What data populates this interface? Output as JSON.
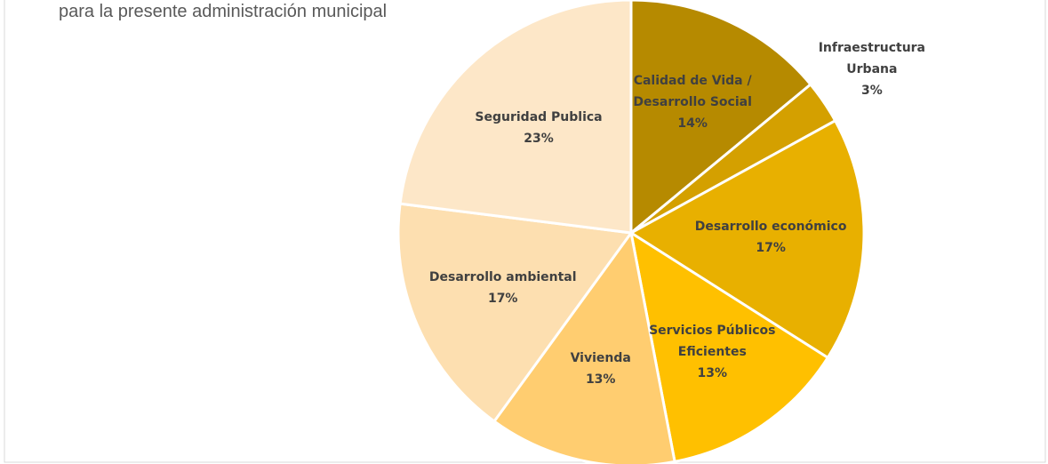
{
  "chart_data": {
    "type": "pie",
    "title": "para la presente administración municipal",
    "categories": [
      "Calidad de Vida / Desarrollo Social",
      "Infraestructura Urbana",
      "Desarrollo económico",
      "Servicios Públicos Eficientes",
      "Vivienda",
      "Desarrollo ambiental",
      "Seguridad Publica"
    ],
    "values": [
      14,
      3,
      17,
      13,
      13,
      17,
      23
    ],
    "value_labels": [
      "14%",
      "3%",
      "17%",
      "13%",
      "13%",
      "17%",
      "23%"
    ],
    "colors": [
      "#b68a00",
      "#d4a000",
      "#e8b000",
      "#ffc000",
      "#ffcd70",
      "#fddfb0",
      "#fde7c8"
    ]
  }
}
